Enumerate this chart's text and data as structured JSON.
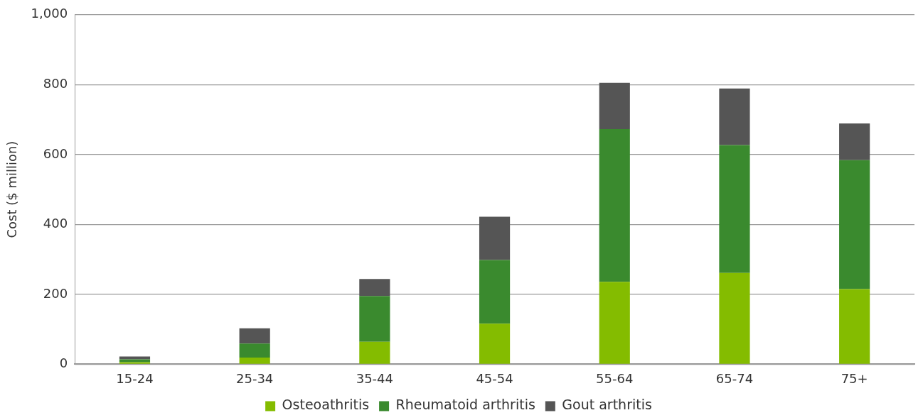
{
  "chart_data": {
    "type": "bar",
    "stacked": true,
    "ylabel": "Cost ($ million)",
    "categories": [
      "15-24",
      "25-34",
      "35-44",
      "45-54",
      "55-64",
      "65-74",
      "75+"
    ],
    "series": [
      {
        "name": "Osteoathritis",
        "color": "#84bc00",
        "values": [
          6,
          19,
          64,
          116,
          236,
          261,
          215
        ]
      },
      {
        "name": "Rheumatoid arthritis",
        "color": "#3a8a2e",
        "values": [
          8,
          40,
          131,
          182,
          437,
          366,
          369
        ]
      },
      {
        "name": "Gout arthritis",
        "color": "#555555",
        "values": [
          8,
          44,
          49,
          124,
          132,
          162,
          105
        ]
      }
    ],
    "ylim": [
      0,
      1000
    ],
    "yticks": [
      0,
      200,
      400,
      600,
      800,
      {
        "value": 1000,
        "label": "1,000"
      }
    ],
    "grid": "y",
    "legend": "bottom"
  }
}
